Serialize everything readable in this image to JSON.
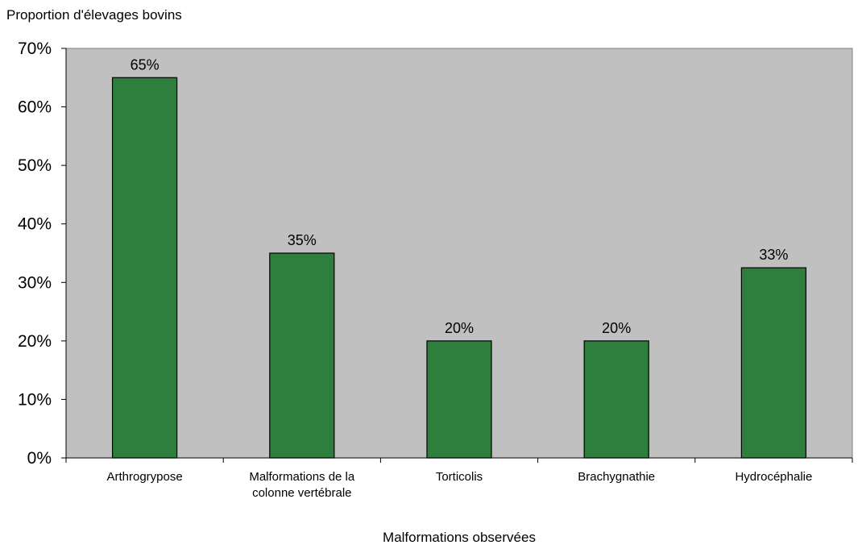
{
  "chart_data": {
    "type": "bar",
    "ylabel": "Proportion d'élevages bovins",
    "xlabel": "Malformations observées",
    "categories": [
      [
        "Arthrogrypose"
      ],
      [
        "Malformations de la",
        "colonne vertébrale"
      ],
      [
        "Torticolis"
      ],
      [
        "Brachygnathie"
      ],
      [
        "Hydrocéphalie"
      ]
    ],
    "values": [
      0.65,
      0.35,
      0.2,
      0.2,
      0.325
    ],
    "data_labels": [
      "65%",
      "35%",
      "20%",
      "20%",
      "33%"
    ],
    "ylim": [
      0,
      0.7
    ],
    "yticks": [
      0,
      0.1,
      0.2,
      0.3,
      0.4,
      0.5,
      0.6,
      0.7
    ],
    "ytick_labels": [
      "0%",
      "10%",
      "20%",
      "30%",
      "40%",
      "50%",
      "60%",
      "70%"
    ],
    "grid": false,
    "legend": "none",
    "colors": {
      "bar_fill": "#2e7f3e",
      "bar_stroke": "#000000",
      "plot_background": "#c0c0c0",
      "plot_border": "#808080",
      "axis": "#000000"
    }
  }
}
